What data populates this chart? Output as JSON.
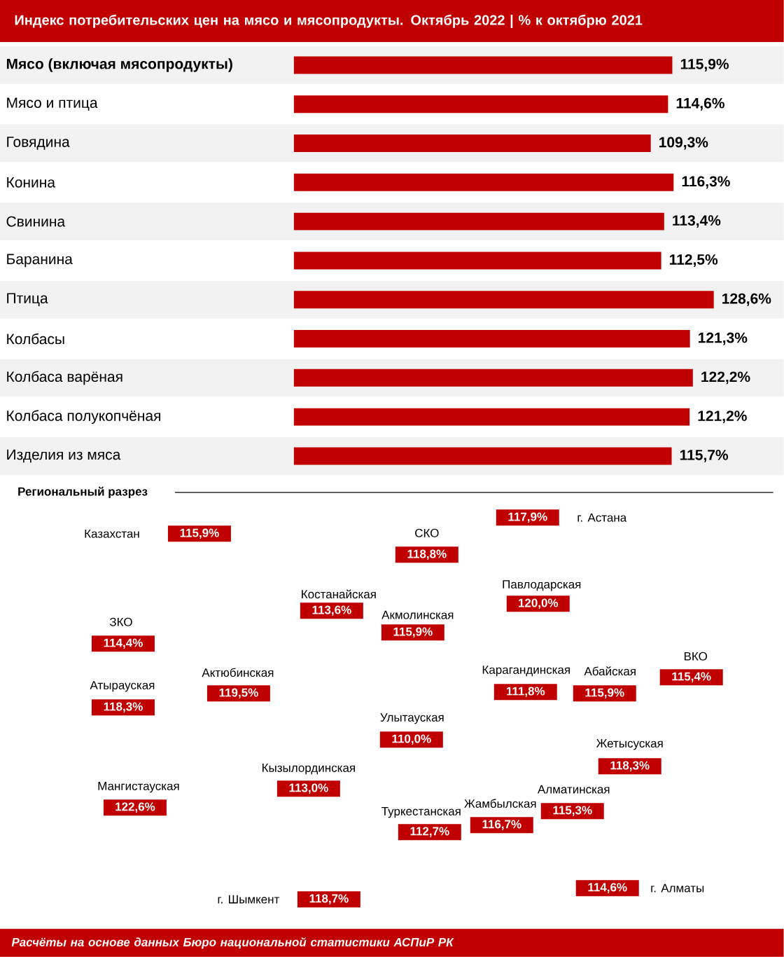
{
  "chart_data": [
    {
      "type": "bar",
      "orientation": "horizontal",
      "title": "Индекс потребительских цен на мясо и мясопродукты. Октябрь 2022 | % к октябрю 2021",
      "categories": [
        "Мясо (включая мясопродукты)",
        "Мясо и птица",
        "Говядина",
        "Конина",
        "Свинина",
        "Баранина",
        "Птица",
        "Колбасы",
        "Колбаса варёная",
        "Колбаса полукопчёная",
        "Изделия из мяса"
      ],
      "values": [
        115.9,
        114.6,
        109.3,
        116.3,
        113.4,
        112.5,
        128.6,
        121.3,
        122.2,
        121.2,
        115.7
      ],
      "value_labels": [
        "115,9%",
        "114,6%",
        "109,3%",
        "116,3%",
        "113,4%",
        "112,5%",
        "128,6%",
        "121,3%",
        "122,2%",
        "121,2%",
        "115,7%"
      ],
      "color": "#c00000",
      "tick_labels": "y"
    },
    {
      "type": "other",
      "title": "Региональный разрез",
      "categories": [
        "Казахстан",
        "СКО",
        "г. Астана",
        "Костанайская",
        "Акмолинская",
        "Павлодарская",
        "ЗКО",
        "Актюбинская",
        "Атырауская",
        "Карагандинская",
        "Абайская",
        "ВКО",
        "Улытауская",
        "Жетысуская",
        "Кызылординская",
        "Мангистауская",
        "Туркестанская",
        "Жамбылская",
        "Алматинская",
        "г. Шымкент",
        "г. Алматы"
      ],
      "values": [
        115.9,
        118.8,
        117.9,
        113.6,
        115.9,
        120.0,
        114.4,
        119.5,
        118.3,
        111.8,
        115.9,
        115.4,
        110.0,
        118.3,
        113.0,
        122.6,
        112.7,
        116.7,
        115.3,
        118.7,
        114.6
      ],
      "value_labels": [
        "115,9%",
        "118,8%",
        "117,9%",
        "113,6%",
        "115,9%",
        "120,0%",
        "114,4%",
        "119,5%",
        "118,3%",
        "111,8%",
        "115,9%",
        "115,4%",
        "110,0%",
        "118,3%",
        "113,0%",
        "122,6%",
        "112,7%",
        "116,7%",
        "115,3%",
        "118,7%",
        "114,6%"
      ],
      "color": "#c00000",
      "annotations": [
        "Расчёты на основе данных Бюро национальной статистики АСПиР РК"
      ]
    }
  ]
}
